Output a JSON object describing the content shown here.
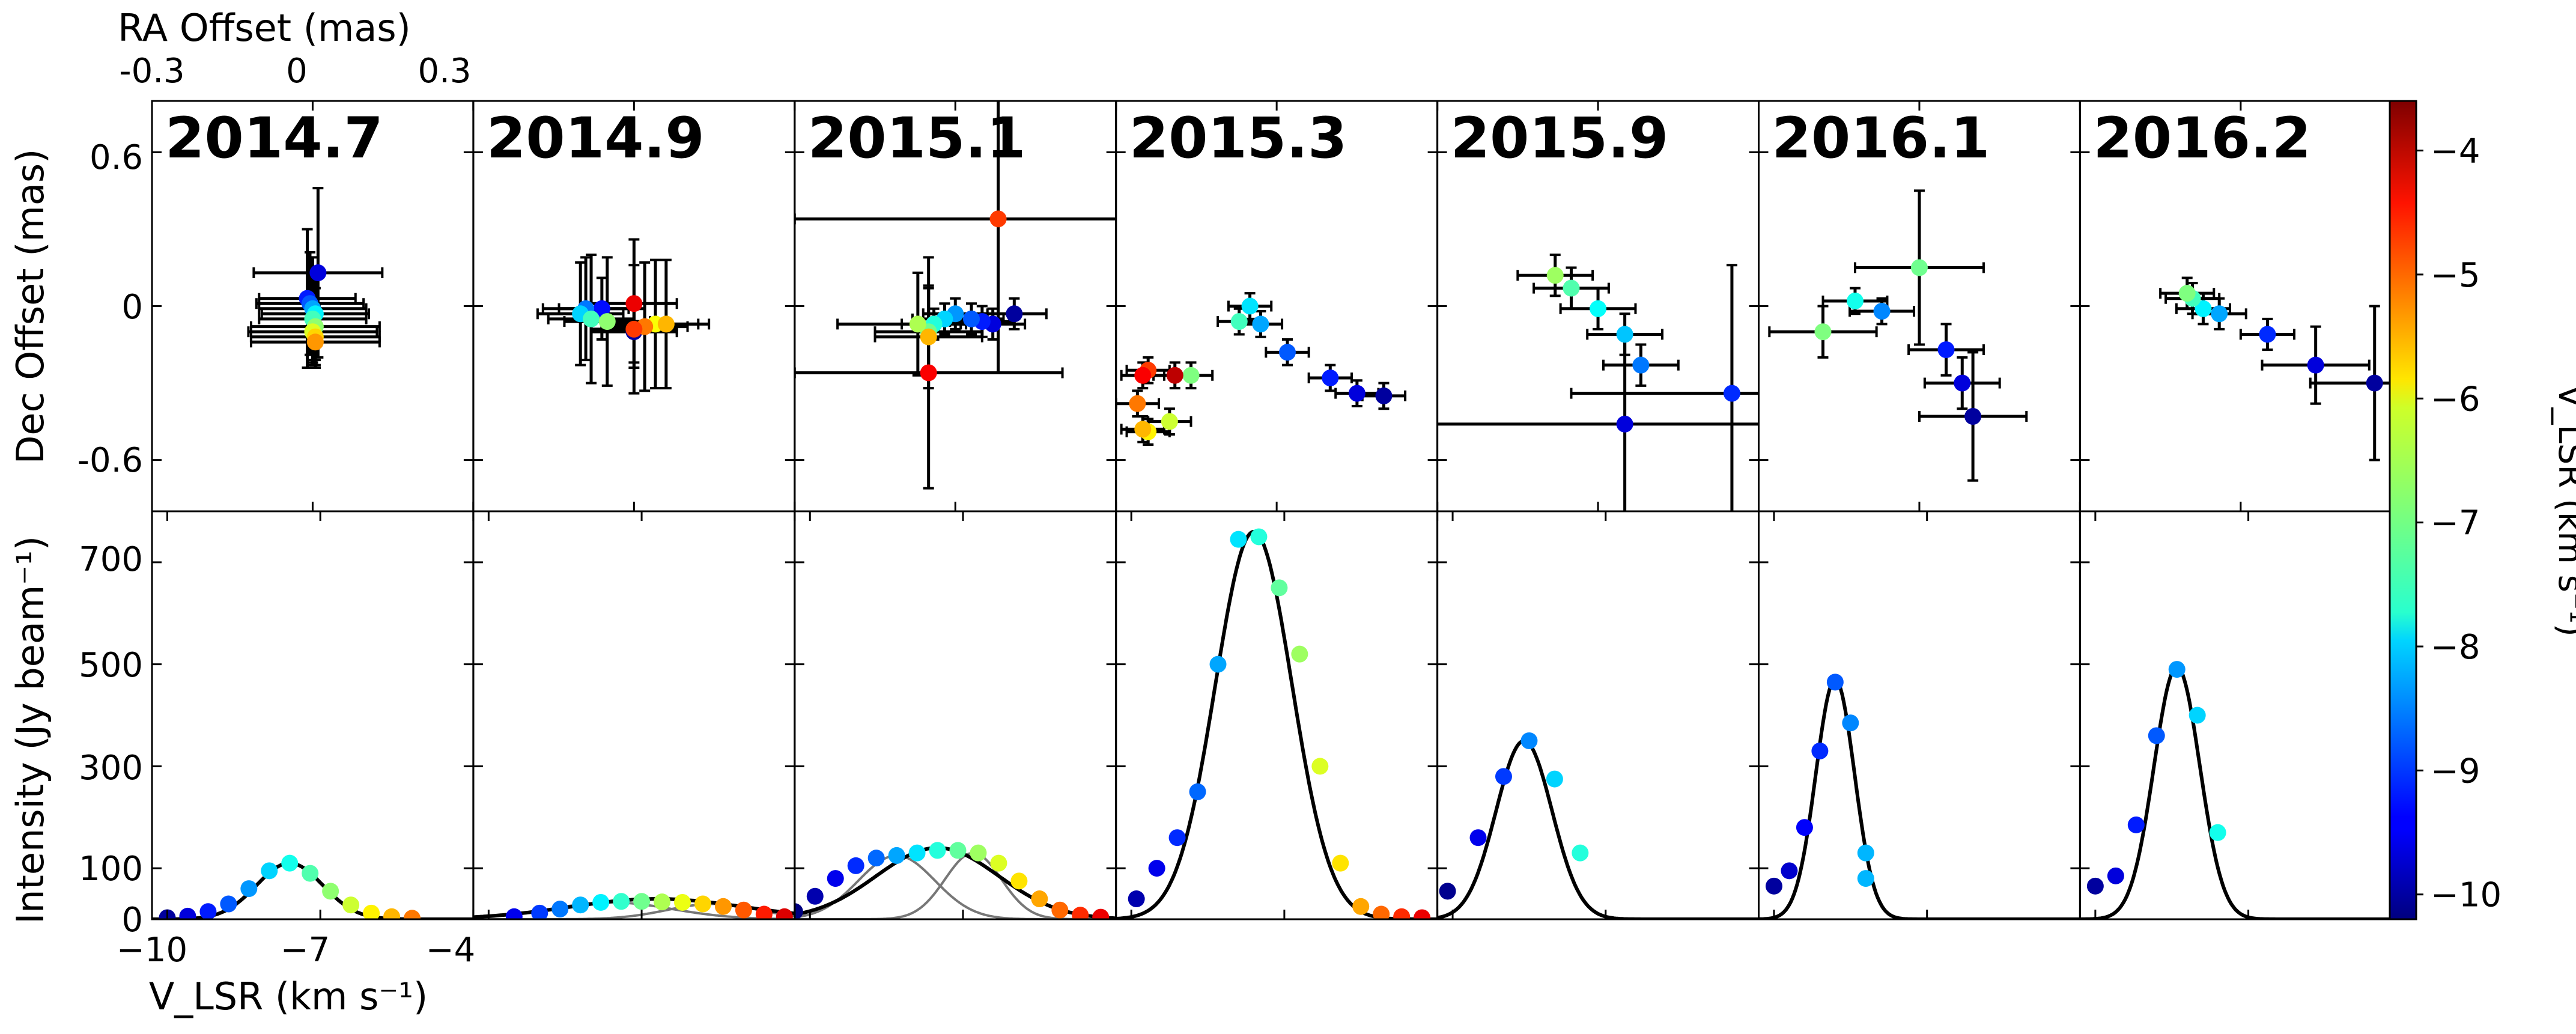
{
  "figure": {
    "top_axis_label": "RA Offset (mas)",
    "top_ticks": [
      "-0.3",
      "0",
      "0.3"
    ],
    "y_label_top": "Dec Offset (mas)",
    "y_ticks_top": [
      "0.6",
      "0",
      "-0.6"
    ],
    "y_label_bottom": "Intensity (Jy beam⁻¹)",
    "y_ticks_bottom": [
      "700",
      "500",
      "300",
      "100",
      "0"
    ],
    "x_label_bottom": "V_LSR (km s⁻¹)",
    "x_ticks_bottom": [
      "−10",
      "−7",
      "−4"
    ],
    "colorbar_label": "V_LSR (km s⁻¹)",
    "colorbar_ticks": [
      "−4",
      "−5",
      "−6",
      "−7",
      "−8",
      "−9",
      "−10"
    ]
  },
  "chart_data": {
    "type": "scatter",
    "description_of_panels": "Seven epochs; top row: spot positions (RA/Dec offsets with error bars), bottom row: spectra with Gaussian fits; colour encodes V_LSR",
    "top_xlim": [
      -0.3,
      0.3
    ],
    "top_ylim": [
      -0.8,
      0.8
    ],
    "bottom_xlim": [
      -10.3,
      -4
    ],
    "bottom_ylim": [
      0,
      800
    ],
    "color_scale": {
      "vmin": -10.2,
      "vmax": -3.6,
      "colormap": "jet"
    },
    "epochs": [
      {
        "label": "2014.7",
        "spots": [
          {
            "ra": 0.01,
            "dec": 0.13,
            "v": -9.6,
            "xerr": 0.12,
            "yerr": 0.33
          },
          {
            "ra": -0.01,
            "dec": 0.03,
            "v": -9.2,
            "xerr": 0.09,
            "yerr": 0.27
          },
          {
            "ra": -0.005,
            "dec": 0.01,
            "v": -8.8,
            "xerr": 0.1,
            "yerr": 0.2
          },
          {
            "ra": 0.0,
            "dec": -0.01,
            "v": -8.3,
            "xerr": 0.1,
            "yerr": 0.2
          },
          {
            "ra": 0.005,
            "dec": -0.03,
            "v": -7.8,
            "xerr": 0.1,
            "yerr": 0.18
          },
          {
            "ra": 0.0,
            "dec": -0.05,
            "v": -7.3,
            "xerr": 0.1,
            "yerr": 0.18
          },
          {
            "ra": 0.005,
            "dec": -0.08,
            "v": -6.8,
            "xerr": 0.12,
            "yerr": 0.15
          },
          {
            "ra": 0.0,
            "dec": -0.1,
            "v": -6.3,
            "xerr": 0.12,
            "yerr": 0.12
          },
          {
            "ra": 0.005,
            "dec": -0.12,
            "v": -5.8,
            "xerr": 0.12,
            "yerr": 0.12
          },
          {
            "ra": 0.005,
            "dec": -0.14,
            "v": -5.4,
            "xerr": 0.12,
            "yerr": 0.1
          }
        ],
        "spectrum": {
          "points": [
            [
              -10.0,
              3
            ],
            [
              -9.6,
              6
            ],
            [
              -9.2,
              15
            ],
            [
              -8.8,
              30
            ],
            [
              -8.4,
              60
            ],
            [
              -8.0,
              95
            ],
            [
              -7.6,
              110
            ],
            [
              -7.2,
              90
            ],
            [
              -6.8,
              55
            ],
            [
              -6.4,
              28
            ],
            [
              -6.0,
              12
            ],
            [
              -5.6,
              5
            ],
            [
              -5.2,
              2
            ]
          ],
          "fits": [
            {
              "amp": 110,
              "center": -7.6,
              "sigma": 0.65,
              "style": "total"
            }
          ]
        }
      },
      {
        "label": "2014.9",
        "spots": [
          {
            "ra": 0.0,
            "dec": -0.1,
            "v": -10.0,
            "xerr": 0.08,
            "yerr": 0.12
          },
          {
            "ra": -0.06,
            "dec": -0.01,
            "v": -9.3,
            "xerr": 0.08,
            "yerr": 0.12
          },
          {
            "ra": -0.09,
            "dec": -0.01,
            "v": -8.6,
            "xerr": 0.08,
            "yerr": 0.2
          },
          {
            "ra": -0.1,
            "dec": -0.03,
            "v": -8.0,
            "xerr": 0.08,
            "yerr": 0.2
          },
          {
            "ra": -0.08,
            "dec": -0.05,
            "v": -7.3,
            "xerr": 0.08,
            "yerr": 0.25
          },
          {
            "ra": -0.05,
            "dec": -0.06,
            "v": -6.8,
            "xerr": 0.08,
            "yerr": 0.25
          },
          {
            "ra": 0.04,
            "dec": -0.07,
            "v": -6.1,
            "xerr": 0.08,
            "yerr": 0.25
          },
          {
            "ra": 0.06,
            "dec": -0.07,
            "v": -5.6,
            "xerr": 0.08,
            "yerr": 0.25
          },
          {
            "ra": 0.02,
            "dec": -0.08,
            "v": -5.2,
            "xerr": 0.08,
            "yerr": 0.25
          },
          {
            "ra": 0.0,
            "dec": -0.09,
            "v": -4.8,
            "xerr": 0.08,
            "yerr": 0.25
          },
          {
            "ra": 0.0,
            "dec": 0.01,
            "v": -4.3,
            "xerr": 0.08,
            "yerr": 0.25
          }
        ],
        "spectrum": {
          "points": [
            [
              -9.5,
              5
            ],
            [
              -9.0,
              12
            ],
            [
              -8.6,
              20
            ],
            [
              -8.2,
              28
            ],
            [
              -7.8,
              33
            ],
            [
              -7.4,
              35
            ],
            [
              -7.0,
              35
            ],
            [
              -6.6,
              34
            ],
            [
              -6.2,
              33
            ],
            [
              -5.8,
              30
            ],
            [
              -5.4,
              25
            ],
            [
              -5.0,
              18
            ],
            [
              -4.6,
              10
            ],
            [
              -4.2,
              5
            ]
          ],
          "fits": [
            {
              "amp": 33,
              "center": -7.6,
              "sigma": 1.2,
              "style": "component"
            },
            {
              "amp": 30,
              "center": -5.6,
              "sigma": 0.9,
              "style": "component"
            },
            {
              "amp": 40,
              "center": -6.7,
              "sigma": 1.7,
              "style": "total"
            }
          ]
        }
      },
      {
        "label": "2015.1",
        "spots": [
          {
            "ra": 0.11,
            "dec": -0.03,
            "v": -10.0,
            "xerr": 0.06,
            "yerr": 0.06
          },
          {
            "ra": 0.07,
            "dec": -0.07,
            "v": -9.6,
            "xerr": 0.06,
            "yerr": 0.06
          },
          {
            "ra": 0.05,
            "dec": -0.06,
            "v": -9.2,
            "xerr": 0.06,
            "yerr": 0.06
          },
          {
            "ra": 0.03,
            "dec": -0.05,
            "v": -8.8,
            "xerr": 0.06,
            "yerr": 0.06
          },
          {
            "ra": 0.0,
            "dec": -0.03,
            "v": -8.4,
            "xerr": 0.06,
            "yerr": 0.06
          },
          {
            "ra": -0.02,
            "dec": -0.05,
            "v": -8.0,
            "xerr": 0.06,
            "yerr": 0.06
          },
          {
            "ra": -0.04,
            "dec": -0.07,
            "v": -7.5,
            "xerr": 0.06,
            "yerr": 0.06
          },
          {
            "ra": -0.05,
            "dec": -0.1,
            "v": -7.0,
            "xerr": 0.1,
            "yerr": 0.17
          },
          {
            "ra": -0.07,
            "dec": -0.07,
            "v": -6.6,
            "xerr": 0.15,
            "yerr": 0.2
          },
          {
            "ra": -0.05,
            "dec": -0.12,
            "v": -5.6,
            "xerr": 0.1,
            "yerr": 0.2
          },
          {
            "ra": 0.08,
            "dec": 0.34,
            "v": -4.8,
            "xerr": 0.38,
            "yerr": 0.6
          },
          {
            "ra": -0.05,
            "dec": -0.26,
            "v": -4.4,
            "xerr": 0.25,
            "yerr": 0.45
          }
        ],
        "spectrum": {
          "points": [
            [
              -10.3,
              15
            ],
            [
              -9.9,
              45
            ],
            [
              -9.5,
              80
            ],
            [
              -9.1,
              105
            ],
            [
              -8.7,
              120
            ],
            [
              -8.3,
              125
            ],
            [
              -7.9,
              130
            ],
            [
              -7.5,
              135
            ],
            [
              -7.1,
              135
            ],
            [
              -6.7,
              130
            ],
            [
              -6.3,
              110
            ],
            [
              -5.9,
              75
            ],
            [
              -5.5,
              40
            ],
            [
              -5.1,
              18
            ],
            [
              -4.7,
              8
            ],
            [
              -4.3,
              4
            ]
          ],
          "fits": [
            {
              "amp": 125,
              "center": -8.3,
              "sigma": 0.75,
              "style": "component"
            },
            {
              "amp": 130,
              "center": -6.8,
              "sigma": 0.55,
              "style": "component"
            },
            {
              "amp": 140,
              "center": -7.5,
              "sigma": 1.2,
              "style": "total"
            }
          ]
        }
      },
      {
        "label": "2015.3",
        "spots": [
          {
            "ra": 0.2,
            "dec": -0.35,
            "v": -10.0,
            "xerr": 0.04,
            "yerr": 0.05
          },
          {
            "ra": 0.15,
            "dec": -0.34,
            "v": -9.6,
            "xerr": 0.04,
            "yerr": 0.05
          },
          {
            "ra": 0.1,
            "dec": -0.28,
            "v": -9.2,
            "xerr": 0.04,
            "yerr": 0.05
          },
          {
            "ra": 0.02,
            "dec": -0.18,
            "v": -8.8,
            "xerr": 0.04,
            "yerr": 0.05
          },
          {
            "ra": -0.03,
            "dec": -0.07,
            "v": -8.3,
            "xerr": 0.04,
            "yerr": 0.05
          },
          {
            "ra": -0.05,
            "dec": 0.0,
            "v": -7.9,
            "xerr": 0.04,
            "yerr": 0.05
          },
          {
            "ra": -0.07,
            "dec": -0.06,
            "v": -7.3,
            "xerr": 0.04,
            "yerr": 0.05
          },
          {
            "ra": -0.16,
            "dec": -0.27,
            "v": -6.9,
            "xerr": 0.04,
            "yerr": 0.05
          },
          {
            "ra": -0.2,
            "dec": -0.45,
            "v": -6.4,
            "xerr": 0.04,
            "yerr": 0.05
          },
          {
            "ra": -0.24,
            "dec": -0.49,
            "v": -6.0,
            "xerr": 0.04,
            "yerr": 0.05
          },
          {
            "ra": -0.25,
            "dec": -0.48,
            "v": -5.6,
            "xerr": 0.04,
            "yerr": 0.05
          },
          {
            "ra": -0.26,
            "dec": -0.38,
            "v": -5.2,
            "xerr": 0.04,
            "yerr": 0.05
          },
          {
            "ra": -0.24,
            "dec": -0.25,
            "v": -4.8,
            "xerr": 0.04,
            "yerr": 0.05
          },
          {
            "ra": -0.25,
            "dec": -0.27,
            "v": -4.4,
            "xerr": 0.04,
            "yerr": 0.05
          },
          {
            "ra": -0.19,
            "dec": -0.27,
            "v": -4.0,
            "xerr": 0.04,
            "yerr": 0.05
          }
        ],
        "spectrum": {
          "points": [
            [
              -9.9,
              40
            ],
            [
              -9.5,
              100
            ],
            [
              -9.1,
              160
            ],
            [
              -8.7,
              250
            ],
            [
              -8.3,
              500
            ],
            [
              -7.9,
              745
            ],
            [
              -7.5,
              750
            ],
            [
              -7.1,
              650
            ],
            [
              -6.7,
              520
            ],
            [
              -6.3,
              300
            ],
            [
              -5.9,
              110
            ],
            [
              -5.5,
              25
            ],
            [
              -5.1,
              10
            ],
            [
              -4.7,
              5
            ],
            [
              -4.3,
              3
            ]
          ],
          "fits": [
            {
              "amp": 760,
              "center": -7.6,
              "sigma": 0.75,
              "style": "total"
            }
          ]
        }
      },
      {
        "label": "2015.9",
        "spots": [
          {
            "ra": 0.05,
            "dec": -0.46,
            "v": -9.6,
            "xerr": 0.48,
            "yerr": 0.37
          },
          {
            "ra": 0.25,
            "dec": -0.34,
            "v": -9.1,
            "xerr": 0.3,
            "yerr": 0.5
          },
          {
            "ra": 0.08,
            "dec": -0.23,
            "v": -8.6,
            "xerr": 0.07,
            "yerr": 0.08
          },
          {
            "ra": 0.05,
            "dec": -0.11,
            "v": -8.1,
            "xerr": 0.07,
            "yerr": 0.08
          },
          {
            "ra": 0.0,
            "dec": -0.01,
            "v": -7.7,
            "xerr": 0.07,
            "yerr": 0.08
          },
          {
            "ra": -0.05,
            "dec": 0.07,
            "v": -7.2,
            "xerr": 0.07,
            "yerr": 0.08
          },
          {
            "ra": -0.08,
            "dec": 0.12,
            "v": -6.7,
            "xerr": 0.07,
            "yerr": 0.08
          }
        ],
        "spectrum": {
          "points": [
            [
              -10.1,
              55
            ],
            [
              -9.5,
              160
            ],
            [
              -9.0,
              280
            ],
            [
              -8.5,
              350
            ],
            [
              -8.0,
              275
            ],
            [
              -7.5,
              130
            ]
          ],
          "fits": [
            {
              "amp": 350,
              "center": -8.6,
              "sigma": 0.55,
              "style": "total"
            }
          ]
        }
      },
      {
        "label": "2016.1",
        "spots": [
          {
            "ra": 0.1,
            "dec": -0.43,
            "v": -10.0,
            "xerr": 0.1,
            "yerr": 0.25
          },
          {
            "ra": 0.08,
            "dec": -0.3,
            "v": -9.6,
            "xerr": 0.07,
            "yerr": 0.1
          },
          {
            "ra": 0.05,
            "dec": -0.17,
            "v": -9.2,
            "xerr": 0.07,
            "yerr": 0.1
          },
          {
            "ra": 0.0,
            "dec": 0.15,
            "v": -7.0,
            "xerr": 0.12,
            "yerr": 0.3
          },
          {
            "ra": -0.07,
            "dec": -0.02,
            "v": -8.5,
            "xerr": 0.06,
            "yerr": 0.05
          },
          {
            "ra": -0.12,
            "dec": 0.02,
            "v": -7.6,
            "xerr": 0.06,
            "yerr": 0.05
          },
          {
            "ra": -0.18,
            "dec": -0.1,
            "v": -6.9,
            "xerr": 0.1,
            "yerr": 0.1
          }
        ],
        "spectrum": {
          "points": [
            [
              -10.0,
              65
            ],
            [
              -9.7,
              95
            ],
            [
              -9.4,
              180
            ],
            [
              -9.1,
              330
            ],
            [
              -8.8,
              465
            ],
            [
              -8.5,
              385
            ],
            [
              -8.2,
              130
            ],
            [
              -8.2,
              80
            ]
          ],
          "fits": [
            {
              "amp": 470,
              "center": -8.8,
              "sigma": 0.38,
              "style": "total"
            }
          ]
        }
      },
      {
        "label": "2016.2",
        "spots": [
          {
            "ra": 0.25,
            "dec": -0.3,
            "v": -10.0,
            "xerr": 0.12,
            "yerr": 0.3
          },
          {
            "ra": 0.14,
            "dec": -0.23,
            "v": -9.6,
            "xerr": 0.1,
            "yerr": 0.15
          },
          {
            "ra": 0.05,
            "dec": -0.11,
            "v": -9.1,
            "xerr": 0.05,
            "yerr": 0.06
          },
          {
            "ra": -0.04,
            "dec": -0.03,
            "v": -8.3,
            "xerr": 0.05,
            "yerr": 0.06
          },
          {
            "ra": -0.07,
            "dec": -0.01,
            "v": -7.8,
            "xerr": 0.05,
            "yerr": 0.06
          },
          {
            "ra": -0.09,
            "dec": 0.03,
            "v": -7.3,
            "xerr": 0.05,
            "yerr": 0.06
          },
          {
            "ra": -0.1,
            "dec": 0.05,
            "v": -6.9,
            "xerr": 0.05,
            "yerr": 0.06
          }
        ],
        "spectrum": {
          "points": [
            [
              -10.0,
              65
            ],
            [
              -9.6,
              85
            ],
            [
              -9.2,
              185
            ],
            [
              -8.8,
              360
            ],
            [
              -8.4,
              490
            ],
            [
              -8.0,
              400
            ],
            [
              -7.6,
              170
            ]
          ],
          "fits": [
            {
              "amp": 495,
              "center": -8.4,
              "sigma": 0.45,
              "style": "total"
            }
          ]
        }
      }
    ]
  }
}
